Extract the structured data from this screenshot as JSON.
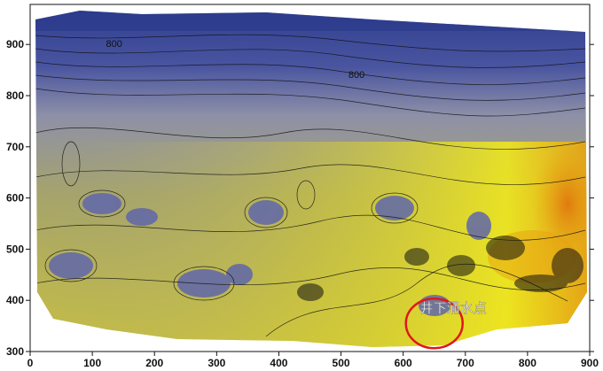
{
  "chart_data": {
    "type": "heatmap",
    "subtype": "contour",
    "title": "",
    "xlabel": "",
    "ylabel": "",
    "xlim": [
      0,
      900
    ],
    "ylim": [
      300,
      975
    ],
    "x_ticks": [
      0,
      100,
      200,
      300,
      400,
      500,
      600,
      700,
      800,
      900
    ],
    "y_ticks": [
      300,
      400,
      500,
      600,
      700,
      800,
      900
    ],
    "grid": false,
    "colormap": [
      "#2a3a8c",
      "#6a70b0",
      "#9a9a9a",
      "#b8b24a",
      "#f0e81a",
      "#e89a10"
    ],
    "contour_labels": [
      {
        "text": "800",
        "x": 135,
        "y": 895
      },
      {
        "text": "800",
        "x": 525,
        "y": 835
      }
    ],
    "annotation": {
      "text": "井下涌水点",
      "marker": "circle",
      "x": 650,
      "y": 355,
      "color": "#e0161b"
    }
  }
}
